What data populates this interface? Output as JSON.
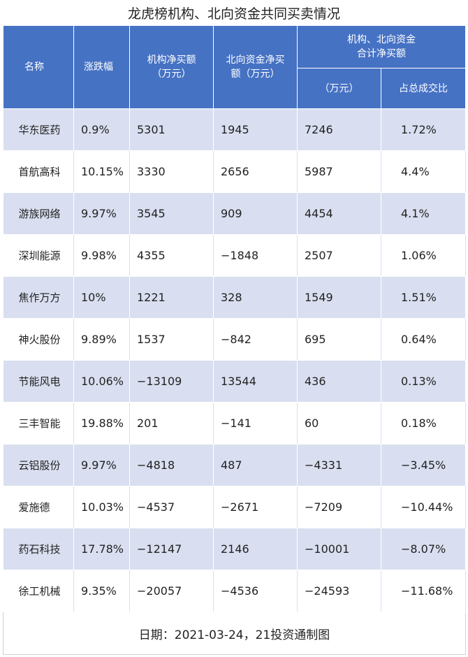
{
  "title": "龙虎榜机构、北向资金共同买卖情况",
  "headers": {
    "name": "名称",
    "change": "涨跌幅",
    "inst_line1": "机构净买额",
    "inst_line2": "（万元）",
    "north_line1": "北向资金净买",
    "north_line2": "额（万元）",
    "combined_line1": "机构、北向资金",
    "combined_line2": "合计净买额",
    "combined_unit": "（万元）",
    "combined_ratio": "占总成交比"
  },
  "rows": [
    {
      "name": "华东医药",
      "change": "0.9%",
      "inst": "5301",
      "north": "1945",
      "total": "7246",
      "ratio": "1.72%"
    },
    {
      "name": "首航高科",
      "change": "10.15%",
      "inst": "3330",
      "north": "2656",
      "total": "5987",
      "ratio": "4.4%"
    },
    {
      "name": "游族网络",
      "change": "9.97%",
      "inst": "3545",
      "north": "909",
      "total": "4454",
      "ratio": "4.1%"
    },
    {
      "name": "深圳能源",
      "change": "9.98%",
      "inst": "4355",
      "north": "−1848",
      "total": "2507",
      "ratio": "1.06%"
    },
    {
      "name": "焦作万方",
      "change": "10%",
      "inst": "1221",
      "north": "328",
      "total": "1549",
      "ratio": "1.51%"
    },
    {
      "name": "神火股份",
      "change": "9.89%",
      "inst": "1537",
      "north": "−842",
      "total": "695",
      "ratio": "0.64%"
    },
    {
      "name": "节能风电",
      "change": "10.06%",
      "inst": "−13109",
      "north": "13544",
      "total": "436",
      "ratio": "0.13%"
    },
    {
      "name": "三丰智能",
      "change": "19.88%",
      "inst": "201",
      "north": "−141",
      "total": "60",
      "ratio": "0.18%"
    },
    {
      "name": "云铝股份",
      "change": "9.97%",
      "inst": "−4818",
      "north": "487",
      "total": "−4331",
      "ratio": "−3.45%"
    },
    {
      "name": "爱施德",
      "change": "10.03%",
      "inst": "−4537",
      "north": "−2671",
      "total": "−7209",
      "ratio": "−10.44%"
    },
    {
      "name": "药石科技",
      "change": "17.78%",
      "inst": "−12147",
      "north": "2146",
      "total": "−10001",
      "ratio": "−8.07%"
    },
    {
      "name": "徐工机械",
      "change": "9.35%",
      "inst": "−20057",
      "north": "−4536",
      "total": "−24593",
      "ratio": "−11.68%"
    }
  ],
  "footer": "日期：2021-03-24，21投资通制图"
}
